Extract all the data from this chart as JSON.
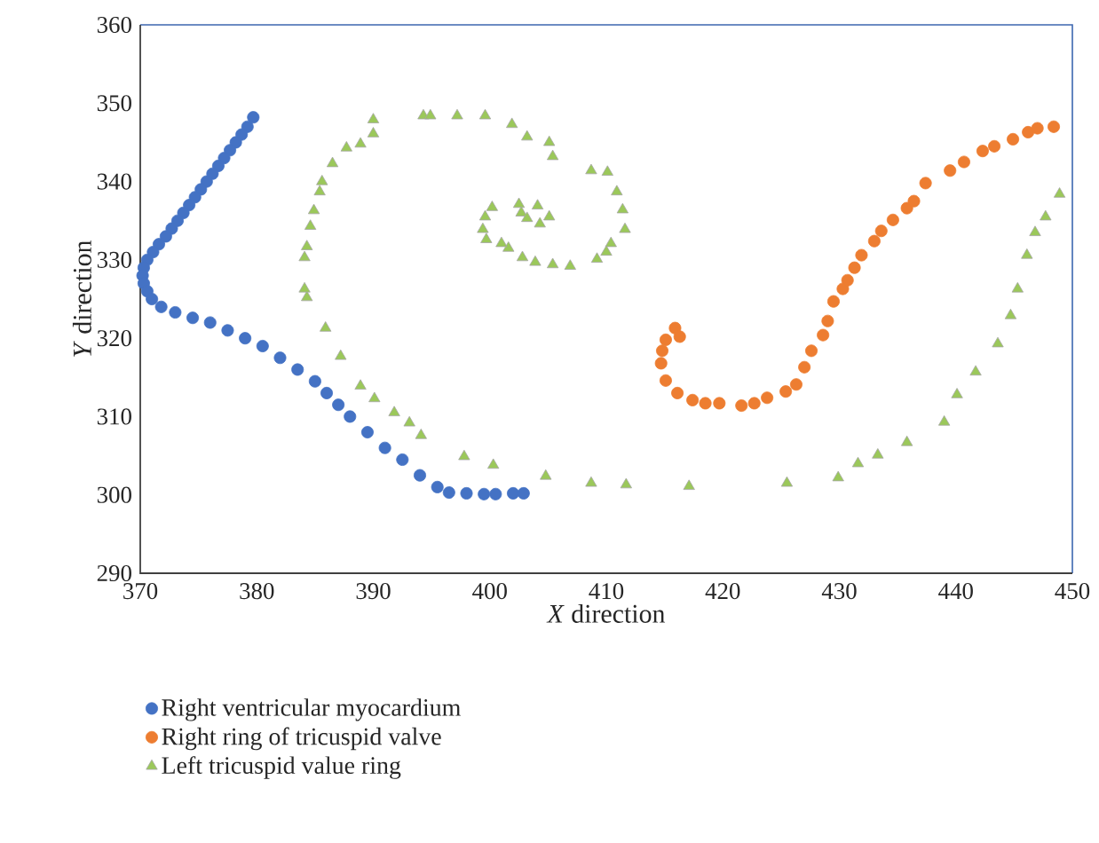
{
  "chart_data": {
    "type": "scatter",
    "xlabel": "*X* direction",
    "ylabel": "*Y* direction",
    "xlim": [
      370,
      450
    ],
    "ylim": [
      290,
      360
    ],
    "xticks": [
      370,
      380,
      390,
      400,
      410,
      420,
      430,
      440,
      450
    ],
    "yticks": [
      290,
      300,
      310,
      320,
      330,
      340,
      350,
      360
    ],
    "grid": false,
    "legend": "bottom",
    "series": [
      {
        "name": "Right ventricular myocardium",
        "color": "#4472c4",
        "marker": "circle",
        "x": [
          379.7,
          379.2,
          378.7,
          378.2,
          377.7,
          377.2,
          376.7,
          376.2,
          375.7,
          375.2,
          374.7,
          374.2,
          373.7,
          373.2,
          372.7,
          372.2,
          371.6,
          371.1,
          370.6,
          370.3,
          370.2,
          370.3,
          370.6,
          371.0,
          371.8,
          373.0,
          374.5,
          376.0,
          377.5,
          379.0,
          380.5,
          382.0,
          383.5,
          385.0,
          386.0,
          387.0,
          388.0,
          389.5,
          391.0,
          392.5,
          394.0,
          395.5,
          396.5,
          398.0,
          399.5,
          400.5,
          402.0,
          402.9
        ],
        "values": [
          348.2,
          347.0,
          346.0,
          345.0,
          344.0,
          343.0,
          342.0,
          341.0,
          340.0,
          339.0,
          338.0,
          337.0,
          336.0,
          335.0,
          334.0,
          333.0,
          332.0,
          331.0,
          330.0,
          329.0,
          328.0,
          327.0,
          326.0,
          325.0,
          324.0,
          323.3,
          322.6,
          322.0,
          321.0,
          320.0,
          319.0,
          317.5,
          316.0,
          314.5,
          313.0,
          311.5,
          310.0,
          308.0,
          306.0,
          304.5,
          302.5,
          301.0,
          300.3,
          300.2,
          300.1,
          300.1,
          300.2,
          300.2
        ]
      },
      {
        "name": "Right ring of tricuspid valve",
        "color": "#ed7d31",
        "marker": "circle",
        "x": [
          415.9,
          416.3,
          415.1,
          414.8,
          414.7,
          415.1,
          416.1,
          417.4,
          418.5,
          419.7,
          421.6,
          422.7,
          423.8,
          425.4,
          426.3,
          427.0,
          427.6,
          428.6,
          429.0,
          429.5,
          430.3,
          430.7,
          431.3,
          431.9,
          433.0,
          433.6,
          434.6,
          435.8,
          436.4,
          437.4,
          439.5,
          440.7,
          442.3,
          443.3,
          444.9,
          446.2,
          447.0,
          448.4
        ],
        "values": [
          321.3,
          320.2,
          319.8,
          318.4,
          316.8,
          314.6,
          313.0,
          312.1,
          311.7,
          311.7,
          311.4,
          311.7,
          312.4,
          313.2,
          314.1,
          316.3,
          318.4,
          320.4,
          322.2,
          324.7,
          326.3,
          327.4,
          329.0,
          330.6,
          332.4,
          333.7,
          335.1,
          336.6,
          337.5,
          339.8,
          341.4,
          342.5,
          343.9,
          344.5,
          345.4,
          346.3,
          346.8,
          347.0
        ]
      },
      {
        "name": "Left tricuspid value ring",
        "color": "#9bc85a",
        "marker": "triangle",
        "x": [
          448.9,
          447.7,
          446.8,
          446.1,
          445.3,
          444.7,
          443.6,
          441.7,
          440.1,
          439.0,
          435.8,
          433.3,
          431.6,
          429.9,
          425.5,
          417.1,
          411.7,
          408.7,
          404.8,
          400.3,
          397.8,
          394.1,
          393.1,
          391.8,
          390.1,
          388.9,
          387.2,
          385.9,
          384.3,
          384.1,
          384.1,
          384.3,
          384.6,
          384.9,
          385.4,
          385.6,
          386.5,
          387.7,
          388.9,
          390.0,
          390.0,
          394.3,
          394.9,
          397.2,
          399.6,
          401.9,
          403.2,
          405.1,
          405.4,
          408.7,
          410.1,
          410.9,
          411.4,
          411.6,
          410.4,
          410.0,
          409.2,
          406.9,
          405.4,
          403.9,
          402.8,
          401.6,
          401.0,
          399.7,
          399.4,
          399.6,
          400.2,
          402.5,
          402.7,
          403.2,
          404.1,
          404.3,
          405.1
        ],
        "values": [
          338.4,
          335.5,
          333.5,
          330.6,
          326.3,
          322.9,
          319.3,
          315.7,
          312.8,
          309.3,
          306.7,
          305.1,
          304.0,
          302.2,
          301.5,
          301.1,
          301.3,
          301.5,
          302.4,
          303.8,
          304.9,
          307.6,
          309.2,
          310.5,
          312.3,
          313.9,
          317.7,
          321.3,
          325.2,
          326.3,
          330.3,
          331.7,
          334.3,
          336.3,
          338.7,
          340.0,
          342.3,
          344.3,
          344.8,
          346.1,
          347.9,
          348.4,
          348.4,
          348.4,
          348.4,
          347.3,
          345.7,
          345.0,
          343.2,
          341.4,
          341.2,
          338.7,
          336.4,
          333.9,
          332.1,
          331.0,
          330.1,
          329.2,
          329.4,
          329.7,
          330.3,
          331.5,
          332.1,
          332.6,
          333.9,
          335.5,
          336.7,
          337.1,
          336.0,
          335.3,
          336.9,
          334.6,
          335.5
        ]
      }
    ]
  }
}
